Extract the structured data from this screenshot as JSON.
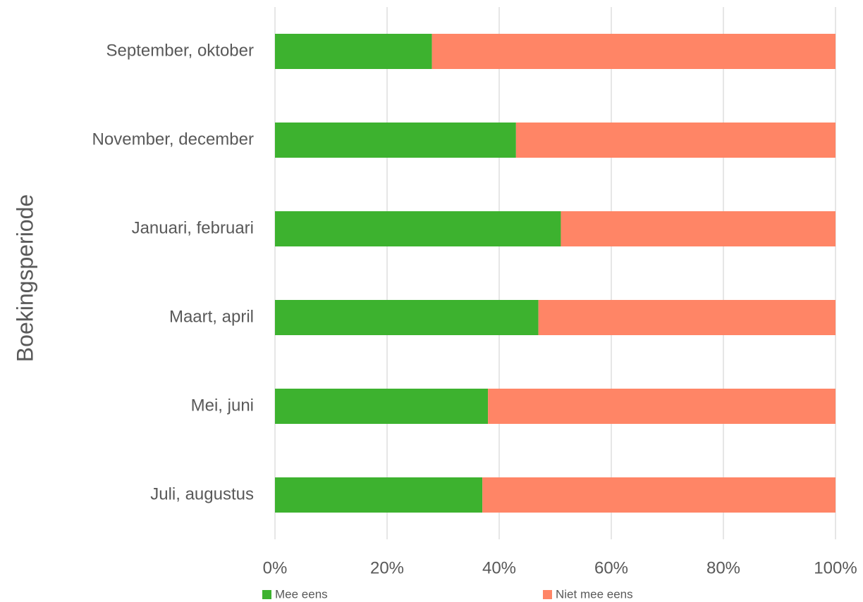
{
  "chart_data": {
    "type": "stacked_barh",
    "y_label": "Boekingsperiode",
    "categories": [
      "September, oktober",
      "November, december",
      "Januari, februari",
      "Maart, april",
      "Mei, juni",
      "Juli, augustus"
    ],
    "series": [
      {
        "name": "Mee eens",
        "color": "#3db22f",
        "values": [
          28,
          43,
          51,
          47,
          38,
          37
        ]
      },
      {
        "name": "Niet mee eens",
        "color": "#ff8566",
        "values": [
          72,
          57,
          49,
          53,
          62,
          63
        ]
      }
    ],
    "xlim": [
      0,
      100
    ],
    "xticks": [
      {
        "value": 0,
        "label": "0%"
      },
      {
        "value": 20,
        "label": "20%"
      },
      {
        "value": 40,
        "label": "40%"
      },
      {
        "value": 60,
        "label": "60%"
      },
      {
        "value": 80,
        "label": "80%"
      },
      {
        "value": 100,
        "label": "100%"
      }
    ],
    "grid": true,
    "legend": "bottom"
  }
}
